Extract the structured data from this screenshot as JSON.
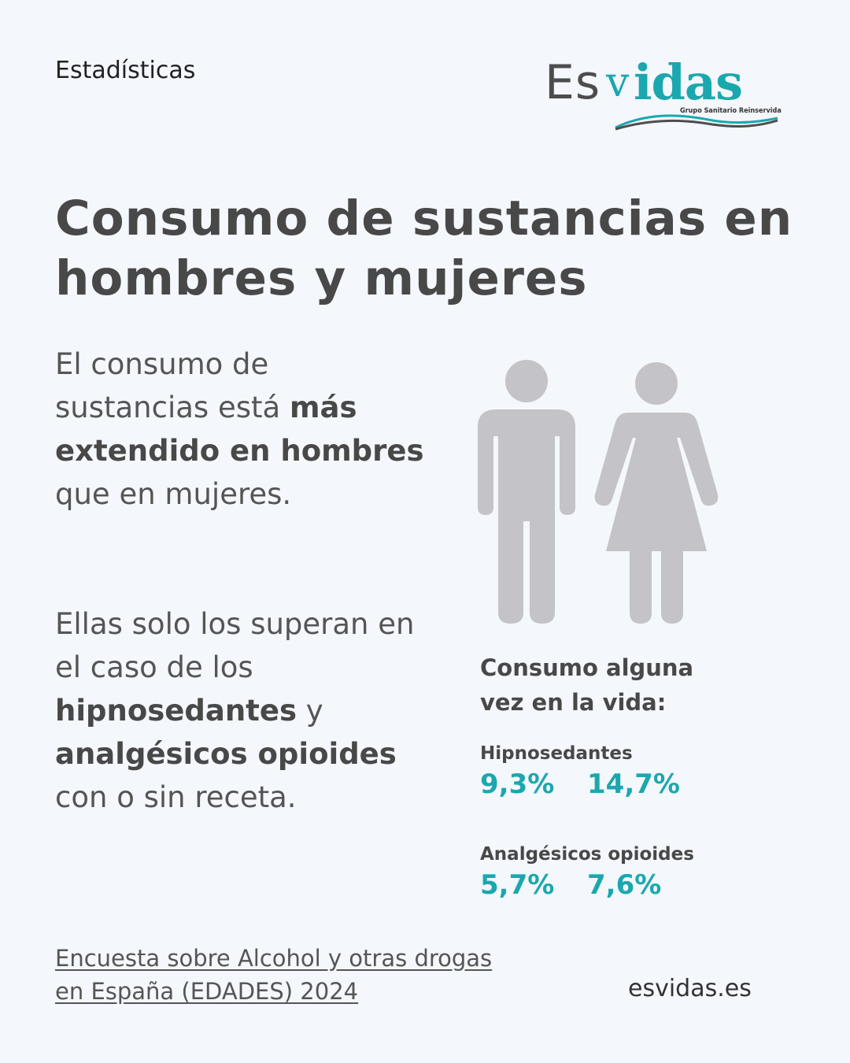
{
  "header": {
    "category": "Estadísticas",
    "logo": {
      "part_es": "Es",
      "part_v": "v",
      "part_idas": "idas",
      "tagline": "Grupo Sanitario Reinservida"
    }
  },
  "title": {
    "line1": "Consumo de sustancias en",
    "line2": "hombres y mujeres"
  },
  "paragraph1": {
    "t1": "El consumo de sustancias está ",
    "b1": "más extendido en hombres",
    "t2": " que en mujeres."
  },
  "paragraph2": {
    "t1": "Ellas solo los superan en el caso de los ",
    "b1": "hipnosedantes",
    "t2": " y ",
    "b2": "analgésicos opioides",
    "t3": " con o sin receta."
  },
  "figures": {
    "man_icon": "man-icon",
    "woman_icon": "woman-icon",
    "color": "#c3c3c8"
  },
  "stats": {
    "heading_line1": "Consumo alguna",
    "heading_line2": "vez en la vida:",
    "items": [
      {
        "label": "Hipnosedantes",
        "men": "9,3%",
        "women": "14,7%"
      },
      {
        "label": "Analgésicos opioides",
        "men": "5,7%",
        "women": "7,6%"
      }
    ],
    "accent": "#1aa8ae"
  },
  "footer": {
    "source_line1": "Encuesta sobre Alcohol y otras drogas",
    "source_line2": "en España (EDADES) 2024",
    "website": "esvidas.es"
  }
}
